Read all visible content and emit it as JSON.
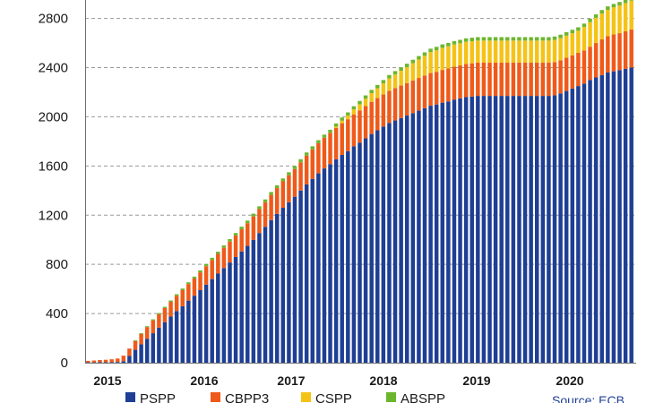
{
  "chart_data": {
    "type": "bar",
    "stacked": true,
    "title": "",
    "xlabel": "",
    "ylabel": "",
    "ylim": [
      0,
      2950
    ],
    "yticks": [
      0,
      400,
      800,
      1200,
      1600,
      2000,
      2400,
      2800
    ],
    "ytick_labels": [
      "0",
      "400",
      "800",
      "1200",
      "1600",
      "2000",
      "2400",
      "2800"
    ],
    "x_tick_labels": [
      "2015",
      "2016",
      "2017",
      "2018",
      "2019",
      "2020"
    ],
    "grid": "horizontal dashed",
    "legend_position": "bottom",
    "source": "Source: ECB",
    "colors": {
      "PSPP": "#1f3f94",
      "CBPP3": "#ef5a1a",
      "CSPP": "#f5c316",
      "ABSPP": "#6cb62e"
    },
    "series": [
      {
        "name": "PSPP",
        "values": [
          3,
          3,
          4,
          4,
          5,
          6,
          12,
          55,
          105,
          150,
          195,
          240,
          285,
          330,
          375,
          420,
          460,
          505,
          545,
          590,
          635,
          680,
          725,
          770,
          815,
          860,
          905,
          950,
          1000,
          1055,
          1105,
          1160,
          1210,
          1260,
          1305,
          1350,
          1400,
          1450,
          1495,
          1540,
          1580,
          1615,
          1655,
          1690,
          1720,
          1760,
          1790,
          1825,
          1860,
          1890,
          1920,
          1950,
          1970,
          1990,
          2010,
          2030,
          2050,
          2070,
          2090,
          2100,
          2115,
          2125,
          2140,
          2150,
          2160,
          2165,
          2170,
          2170,
          2170,
          2170,
          2170,
          2170,
          2170,
          2170,
          2170,
          2170,
          2170,
          2170,
          2170,
          2175,
          2190,
          2210,
          2230,
          2250,
          2270,
          2300,
          2320,
          2340,
          2360,
          2370,
          2380,
          2390,
          2400
        ]
      },
      {
        "name": "CBPP3",
        "values": [
          12,
          15,
          18,
          20,
          23,
          28,
          45,
          60,
          72,
          85,
          95,
          105,
          110,
          115,
          120,
          125,
          130,
          135,
          140,
          145,
          150,
          155,
          160,
          165,
          170,
          175,
          180,
          185,
          190,
          195,
          200,
          205,
          210,
          215,
          220,
          225,
          230,
          235,
          240,
          245,
          250,
          255,
          255,
          258,
          260,
          260,
          262,
          262,
          262,
          262,
          262,
          262,
          264,
          264,
          264,
          266,
          266,
          266,
          266,
          266,
          266,
          268,
          268,
          268,
          270,
          270,
          270,
          270,
          270,
          270,
          270,
          270,
          270,
          270,
          270,
          270,
          270,
          270,
          270,
          270,
          270,
          270,
          270,
          270,
          270,
          270,
          280,
          290,
          295,
          300,
          300,
          305,
          310
        ]
      },
      {
        "name": "CSPP",
        "values": [
          0,
          0,
          0,
          0,
          0,
          0,
          0,
          0,
          0,
          0,
          0,
          0,
          0,
          0,
          0,
          0,
          0,
          0,
          0,
          0,
          0,
          0,
          0,
          0,
          0,
          0,
          0,
          0,
          0,
          0,
          0,
          0,
          0,
          0,
          0,
          0,
          0,
          0,
          0,
          0,
          0,
          0,
          10,
          20,
          30,
          40,
          50,
          60,
          70,
          80,
          90,
          100,
          110,
          120,
          130,
          140,
          150,
          160,
          170,
          175,
          180,
          180,
          180,
          180,
          180,
          180,
          180,
          180,
          180,
          180,
          180,
          180,
          180,
          180,
          180,
          180,
          180,
          180,
          180,
          180,
          180,
          180,
          180,
          180,
          190,
          200,
          205,
          210,
          215,
          220,
          225,
          230,
          235
        ]
      },
      {
        "name": "ABSPP",
        "values": [
          0,
          0,
          0,
          0,
          0,
          0,
          0,
          0,
          5,
          6,
          7,
          8,
          9,
          10,
          11,
          12,
          13,
          14,
          15,
          16,
          17,
          18,
          18,
          19,
          20,
          20,
          21,
          21,
          22,
          22,
          23,
          23,
          23,
          24,
          24,
          24,
          25,
          25,
          25,
          25,
          25,
          25,
          26,
          26,
          26,
          26,
          27,
          27,
          27,
          27,
          27,
          28,
          28,
          28,
          28,
          28,
          28,
          28,
          28,
          28,
          28,
          28,
          28,
          28,
          28,
          28,
          28,
          28,
          28,
          28,
          28,
          28,
          28,
          28,
          28,
          28,
          28,
          28,
          28,
          28,
          28,
          28,
          28,
          28,
          28,
          28,
          28,
          28,
          28,
          28,
          29,
          29,
          29
        ]
      }
    ]
  }
}
